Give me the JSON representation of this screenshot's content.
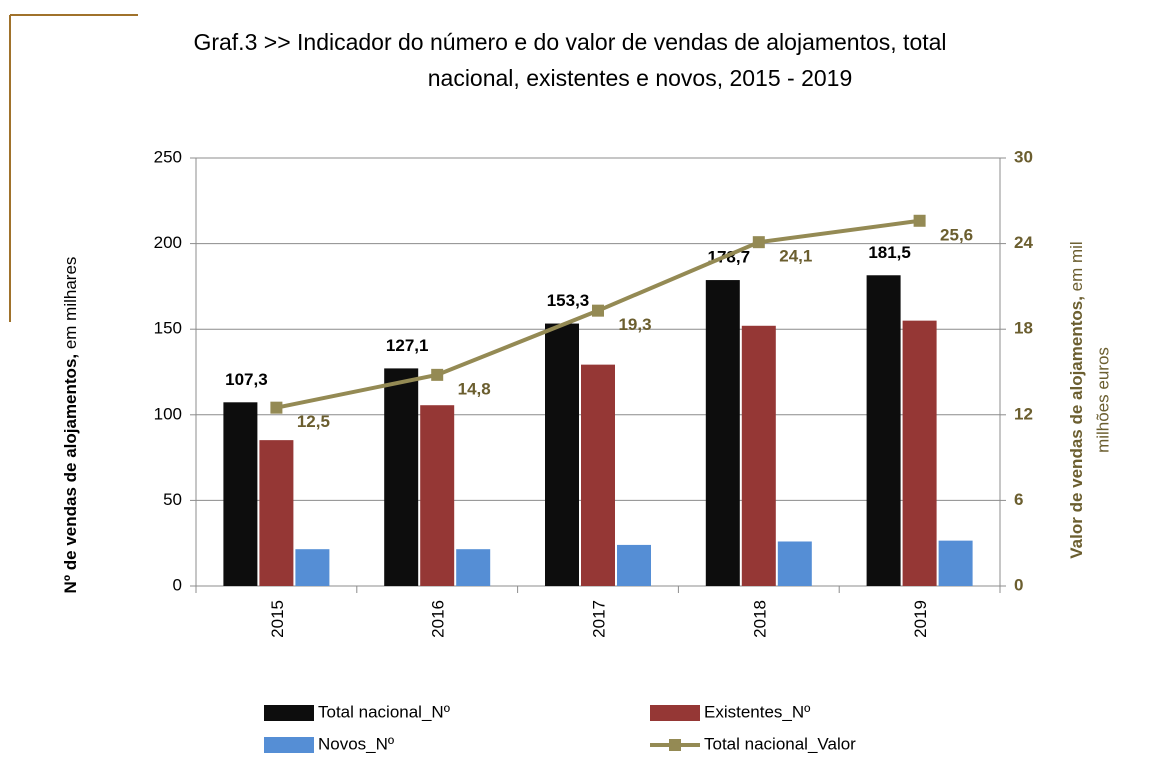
{
  "chart_data": {
    "type": "bar-line",
    "title": [
      "Graf.3   >>  Indicador do número e do valor de vendas de alojamentos, total",
      "nacional, existentes e novos, 2015 - 2019"
    ],
    "ylabel": [
      "Nº  de vendas de alojamentos,",
      "em milhares"
    ],
    "y2label": [
      "Valor de vendas de alojamentos,",
      "em mil",
      "milhões euros"
    ],
    "categories": [
      "2015",
      "2016",
      "2017",
      "2018",
      "2019"
    ],
    "ylim": [
      0,
      250
    ],
    "yticks": [
      0,
      50,
      100,
      150,
      200,
      250
    ],
    "y2lim": [
      0,
      30
    ],
    "y2ticks": [
      0,
      6,
      12,
      18,
      24,
      30
    ],
    "grid": true,
    "series": [
      {
        "name": "Total nacional_Nº",
        "type": "bar",
        "color": "#0d0d0d",
        "values": [
          107.3,
          127.1,
          153.3,
          178.7,
          181.5
        ],
        "value_labels": [
          "107,3",
          "127,1",
          "153,3",
          "178,7",
          "181,5"
        ]
      },
      {
        "name": "Existentes_Nº",
        "type": "bar",
        "color": "#953735",
        "values": [
          85.2,
          105.6,
          129.3,
          152.0,
          155.0
        ]
      },
      {
        "name": "Novos_Nº",
        "type": "bar",
        "color": "#558ed5",
        "values": [
          21.5,
          21.5,
          24.0,
          26.0,
          26.5
        ]
      },
      {
        "name": "Total nacional_Valor",
        "type": "line",
        "axis": "y2",
        "color": "#948a54",
        "values": [
          12.5,
          14.8,
          19.3,
          24.1,
          25.6
        ],
        "value_labels": [
          "12,5",
          "14,8",
          "19,3",
          "24,1",
          "25,6"
        ]
      }
    ]
  }
}
